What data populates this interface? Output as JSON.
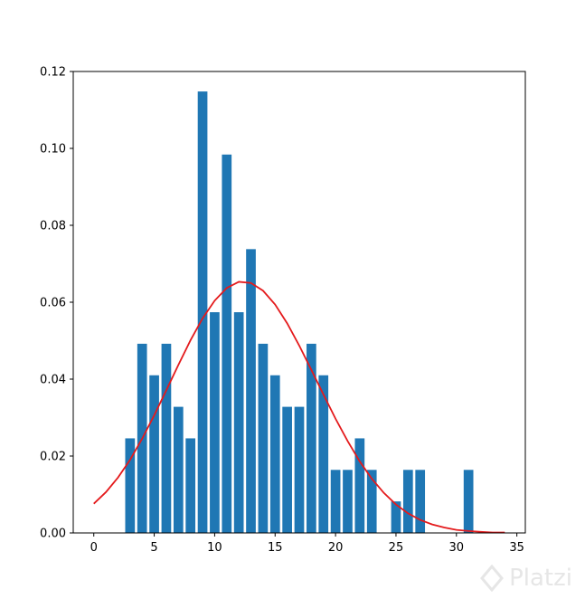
{
  "chart_data": {
    "type": "bar",
    "title": "",
    "xlabel": "",
    "ylabel": "",
    "xlim": [
      -1.7,
      35.7
    ],
    "ylim": [
      0,
      0.12
    ],
    "xticks": [
      "0",
      "5",
      "10",
      "15",
      "20",
      "25",
      "30",
      "35"
    ],
    "xtick_values": [
      0,
      5,
      10,
      15,
      20,
      25,
      30,
      35
    ],
    "yticks": [
      "0.00",
      "0.02",
      "0.04",
      "0.06",
      "0.08",
      "0.10",
      "0.12"
    ],
    "ytick_values": [
      0,
      0.02,
      0.04,
      0.06,
      0.08,
      0.1,
      0.12
    ],
    "grid": false,
    "bar_color": "#1f77b4",
    "line_color": "#e41a1c",
    "bars": [
      {
        "x": 3,
        "y": 0.0246
      },
      {
        "x": 4,
        "y": 0.0492
      },
      {
        "x": 5,
        "y": 0.041
      },
      {
        "x": 6,
        "y": 0.0492
      },
      {
        "x": 7,
        "y": 0.0328
      },
      {
        "x": 8,
        "y": 0.0246
      },
      {
        "x": 9,
        "y": 0.1148
      },
      {
        "x": 10,
        "y": 0.0574
      },
      {
        "x": 11,
        "y": 0.0984
      },
      {
        "x": 12,
        "y": 0.0574
      },
      {
        "x": 13,
        "y": 0.0738
      },
      {
        "x": 14,
        "y": 0.0492
      },
      {
        "x": 15,
        "y": 0.041
      },
      {
        "x": 16,
        "y": 0.0328
      },
      {
        "x": 17,
        "y": 0.0328
      },
      {
        "x": 18,
        "y": 0.0492
      },
      {
        "x": 19,
        "y": 0.041
      },
      {
        "x": 20,
        "y": 0.0164
      },
      {
        "x": 21,
        "y": 0.0164
      },
      {
        "x": 22,
        "y": 0.0246
      },
      {
        "x": 23,
        "y": 0.0164
      },
      {
        "x": 25,
        "y": 0.0082
      },
      {
        "x": 26,
        "y": 0.0164
      },
      {
        "x": 27,
        "y": 0.0164
      },
      {
        "x": 31,
        "y": 0.0164
      }
    ],
    "line": {
      "x": [
        0,
        1,
        2,
        3,
        4,
        5,
        6,
        7,
        8,
        9,
        10,
        11,
        12,
        13,
        14,
        15,
        16,
        17,
        18,
        19,
        20,
        21,
        22,
        23,
        24,
        25,
        26,
        27,
        28,
        29,
        30,
        31,
        32,
        33,
        34
      ],
      "y": [
        0.0076,
        0.0106,
        0.0144,
        0.019,
        0.0245,
        0.0306,
        0.0371,
        0.0437,
        0.0501,
        0.0558,
        0.0604,
        0.0637,
        0.0653,
        0.065,
        0.063,
        0.0594,
        0.0545,
        0.0487,
        0.0424,
        0.036,
        0.0297,
        0.0239,
        0.0186,
        0.0141,
        0.0104,
        0.0074,
        0.0051,
        0.0034,
        0.0022,
        0.0014,
        0.0008,
        0.0005,
        0.0003,
        0.0001,
        0.0001
      ]
    }
  },
  "watermark": {
    "text": "Platzi",
    "icon": "platzi-logo-icon"
  }
}
